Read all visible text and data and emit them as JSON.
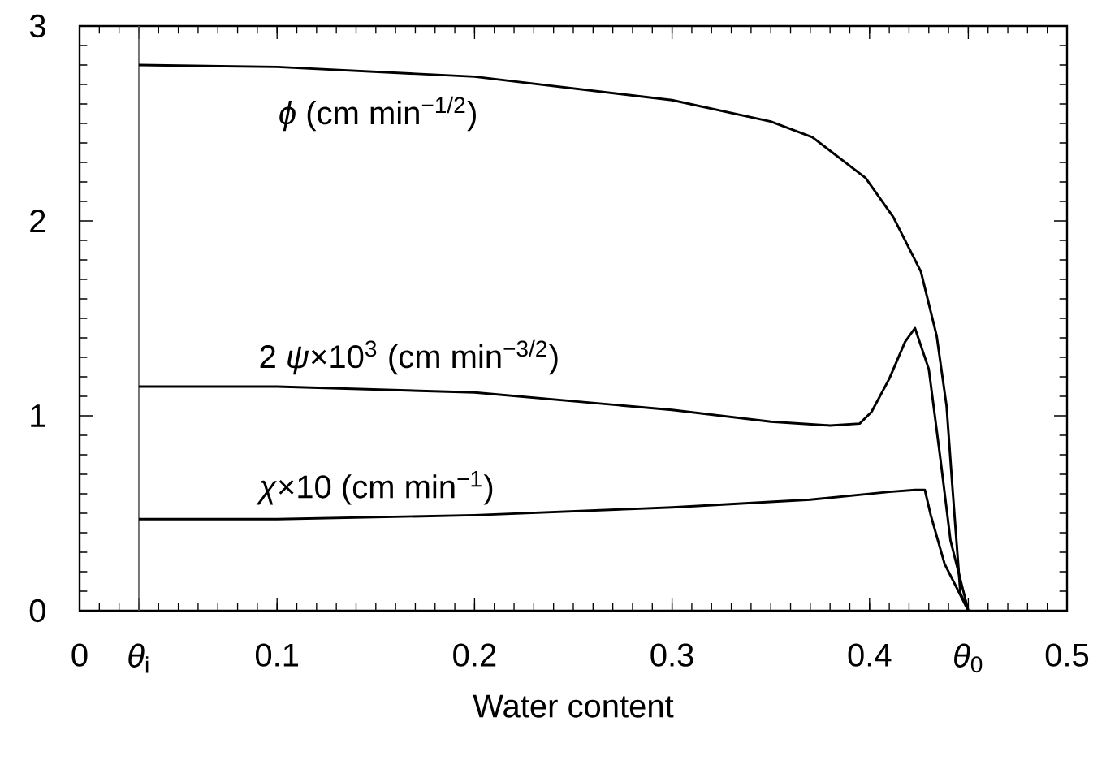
{
  "chart_data": {
    "type": "line",
    "xlabel": "Water content",
    "xlim": [
      0,
      0.5
    ],
    "ylim": [
      0,
      3
    ],
    "xticks": [
      0,
      {
        "value": 0.03,
        "label": "*θ*$_{i}$"
      },
      0.1,
      0.2,
      0.3,
      0.4,
      {
        "value": 0.45,
        "label": "*θ*$_{0}$"
      },
      0.5
    ],
    "yticks": [
      0,
      1,
      2,
      3
    ],
    "grid": false,
    "marker": "none",
    "line_style": "solid",
    "ref_lines": [
      {
        "axis": "x",
        "value": 0.03,
        "color": "#555555"
      }
    ],
    "series": [
      {
        "name": "*ϕ*  (cm min$^{−1/2}$)",
        "color": "#000000",
        "x": [
          0.03,
          0.1,
          0.2,
          0.3,
          0.35,
          0.371,
          0.398,
          0.412,
          0.426,
          0.434,
          0.439,
          0.442,
          0.446,
          0.45
        ],
        "values": [
          2.8,
          2.79,
          2.74,
          2.62,
          2.51,
          2.43,
          2.22,
          2.02,
          1.74,
          1.41,
          1.05,
          0.63,
          0.09,
          0
        ]
      },
      {
        "name": "2 *ψ*×10$^{3}$  (cm min$^{−3/2}$)",
        "color": "#000000",
        "x": [
          0.03,
          0.1,
          0.2,
          0.3,
          0.35,
          0.38,
          0.395,
          0.401,
          0.41,
          0.418,
          0.423,
          0.43,
          0.436,
          0.441,
          0.45
        ],
        "values": [
          1.15,
          1.15,
          1.12,
          1.03,
          0.97,
          0.95,
          0.96,
          1.02,
          1.19,
          1.38,
          1.45,
          1.24,
          0.77,
          0.36,
          0
        ]
      },
      {
        "name": "*χ*×10   (cm min$^{−1}$)",
        "color": "#000000",
        "x": [
          0.03,
          0.1,
          0.2,
          0.3,
          0.37,
          0.41,
          0.423,
          0.428,
          0.431,
          0.438,
          0.45
        ],
        "values": [
          0.47,
          0.47,
          0.49,
          0.53,
          0.57,
          0.61,
          0.62,
          0.62,
          0.49,
          0.24,
          0
        ]
      }
    ]
  }
}
